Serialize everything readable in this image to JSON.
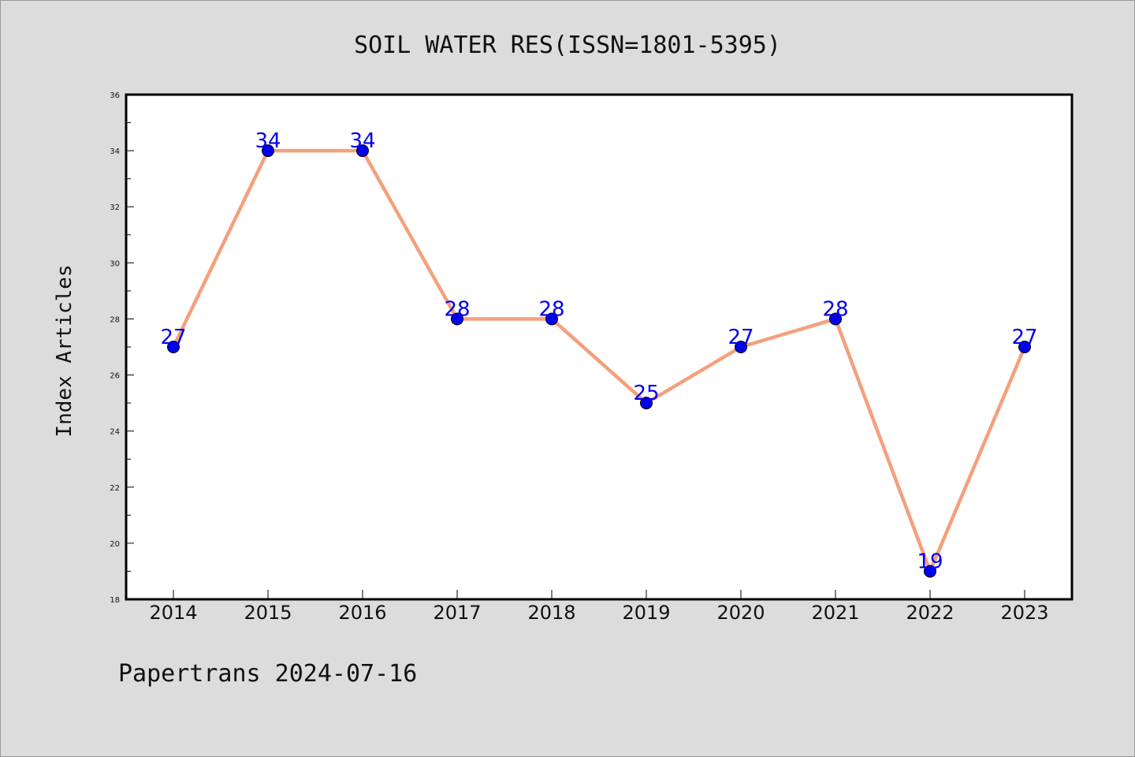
{
  "chart_data": {
    "type": "line",
    "title": "SOIL WATER RES(ISSN=1801-5395)",
    "xlabel": "",
    "ylabel": "Index Articles",
    "categories": [
      "2014",
      "2015",
      "2016",
      "2017",
      "2018",
      "2019",
      "2020",
      "2021",
      "2022",
      "2023"
    ],
    "series": [
      {
        "values": [
          27,
          34,
          34,
          28,
          28,
          25,
          27,
          28,
          19,
          27
        ]
      }
    ],
    "ylim": [
      18,
      36
    ],
    "yticks": [
      "18",
      "20",
      "22",
      "24",
      "26",
      "28",
      "30",
      "32",
      "34",
      "36"
    ],
    "grid": false,
    "line_color": "#f4a07c",
    "marker_color": "#0000ee",
    "label_color": "#0000ee",
    "plot_background": "#ffffff",
    "figure_background": "#dcdcdc"
  },
  "footer": "Papertrans 2024-07-16"
}
